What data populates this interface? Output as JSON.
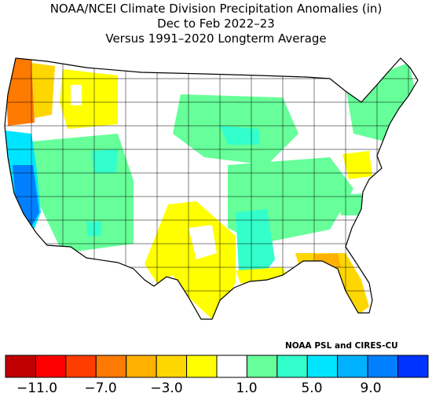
{
  "title": {
    "line1": "NOAA/NCEI Climate Division Precipitation Anomalies (in)",
    "line2": "Dec to Feb 2022–23",
    "line3": "Versus 1991–2020 Longterm Average"
  },
  "credit": "NOAA PSL and CIRES-CU",
  "legend": {
    "colors": [
      "#c00000",
      "#ff0000",
      "#ff3d00",
      "#ff7a00",
      "#ffb000",
      "#ffd700",
      "#ffff00",
      "#ffffff",
      "#66ff99",
      "#33ffcc",
      "#00e5ff",
      "#00b2ff",
      "#0080ff",
      "#0033ff"
    ],
    "ticks": [
      "−11.0",
      "−7.0",
      "−3.0",
      "1.0",
      "5.0",
      "9.0"
    ]
  },
  "map": {
    "type": "choropleth",
    "region": "Contiguous United States climate divisions",
    "anomaly_summary": {
      "wettest": "Central and southern California (blue)",
      "driest": "Western Oregon/Washington coast (orange-red)",
      "wet_areas": "Great Basin, northern Plains, Mississippi Valley, Ohio Valley, New England (green/cyan)",
      "dry_areas": "Texas, Louisiana coast, Florida, Idaho, Mid-Atlantic pockets (yellow/orange)"
    }
  }
}
